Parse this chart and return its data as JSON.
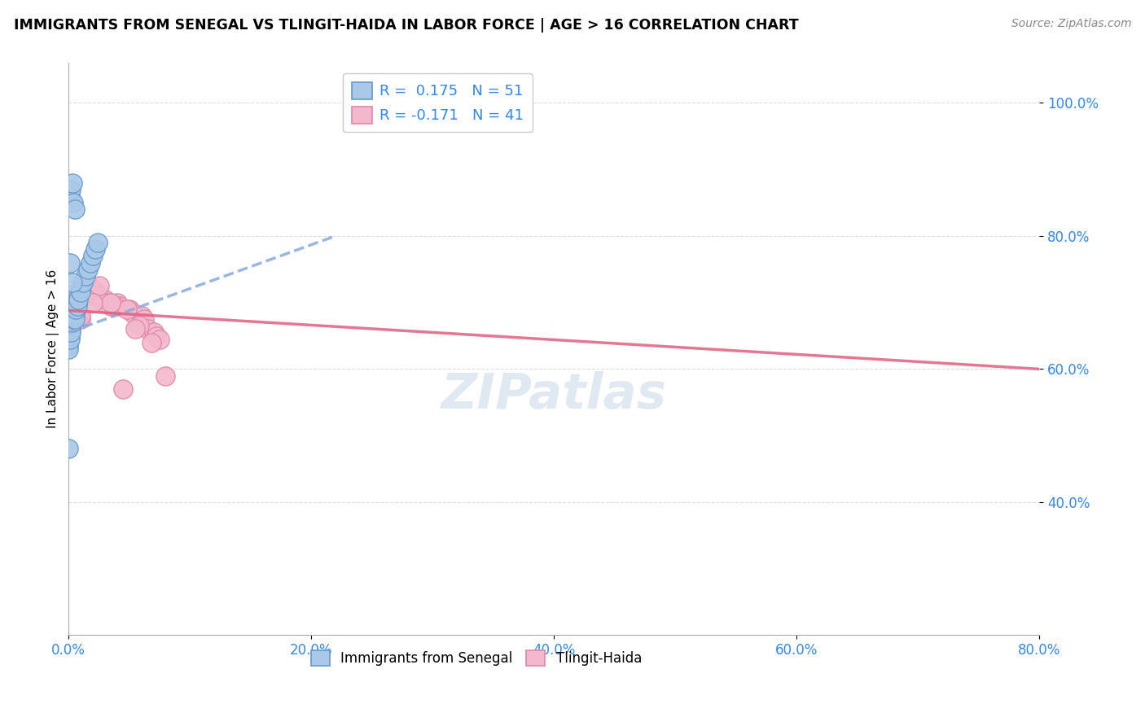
{
  "title": "IMMIGRANTS FROM SENEGAL VS TLINGIT-HAIDA IN LABOR FORCE | AGE > 16 CORRELATION CHART",
  "source_text": "Source: ZipAtlas.com",
  "ylabel": "In Labor Force | Age > 16",
  "xlim": [
    0.0,
    0.8
  ],
  "ylim": [
    0.2,
    1.06
  ],
  "yticks": [
    0.4,
    0.6,
    0.8,
    1.0
  ],
  "ytick_labels": [
    "40.0%",
    "60.0%",
    "80.0%",
    "100.0%"
  ],
  "xticks": [
    0.0,
    0.2,
    0.4,
    0.6,
    0.8
  ],
  "xtick_labels": [
    "0.0%",
    "20.0%",
    "40.0%",
    "60.0%",
    "80.0%"
  ],
  "blue_color": "#aac8e8",
  "pink_color": "#f4b8cc",
  "blue_edge": "#6699cc",
  "pink_edge": "#dd88aa",
  "blue_trend_color": "#88aadd",
  "pink_trend_color": "#e06080",
  "watermark_color": "#c8d8e8",
  "blue_x": [
    0.0,
    0.0,
    0.0,
    0.0,
    0.0,
    0.0,
    0.0,
    0.0,
    0.001,
    0.001,
    0.001,
    0.001,
    0.001,
    0.001,
    0.002,
    0.002,
    0.002,
    0.002,
    0.002,
    0.003,
    0.003,
    0.003,
    0.004,
    0.004,
    0.004,
    0.005,
    0.005,
    0.005,
    0.005,
    0.006,
    0.006,
    0.007,
    0.007,
    0.008,
    0.008,
    0.01,
    0.01,
    0.012,
    0.014,
    0.016,
    0.018,
    0.02,
    0.022,
    0.024,
    0.0,
    0.001,
    0.002,
    0.003,
    0.004,
    0.005,
    0.001,
    0.003
  ],
  "blue_y": [
    0.665,
    0.66,
    0.655,
    0.65,
    0.645,
    0.64,
    0.635,
    0.63,
    0.67,
    0.665,
    0.66,
    0.655,
    0.65,
    0.645,
    0.675,
    0.67,
    0.665,
    0.66,
    0.655,
    0.68,
    0.675,
    0.67,
    0.685,
    0.68,
    0.675,
    0.69,
    0.685,
    0.68,
    0.675,
    0.695,
    0.69,
    0.7,
    0.695,
    0.71,
    0.705,
    0.72,
    0.715,
    0.73,
    0.74,
    0.75,
    0.76,
    0.77,
    0.78,
    0.79,
    0.48,
    0.86,
    0.87,
    0.88,
    0.85,
    0.84,
    0.76,
    0.73
  ],
  "pink_x": [
    0.0,
    0.001,
    0.002,
    0.003,
    0.004,
    0.005,
    0.006,
    0.008,
    0.01,
    0.012,
    0.015,
    0.018,
    0.02,
    0.022,
    0.025,
    0.03,
    0.032,
    0.035,
    0.04,
    0.042,
    0.05,
    0.052,
    0.06,
    0.062,
    0.065,
    0.07,
    0.072,
    0.075,
    0.028,
    0.038,
    0.048,
    0.058,
    0.068,
    0.015,
    0.025,
    0.035,
    0.055,
    0.01,
    0.02,
    0.045,
    0.08
  ],
  "pink_y": [
    0.71,
    0.71,
    0.705,
    0.7,
    0.695,
    0.69,
    0.685,
    0.68,
    0.675,
    0.72,
    0.715,
    0.71,
    0.72,
    0.715,
    0.71,
    0.705,
    0.7,
    0.695,
    0.7,
    0.695,
    0.69,
    0.685,
    0.68,
    0.675,
    0.66,
    0.655,
    0.65,
    0.645,
    0.7,
    0.695,
    0.69,
    0.665,
    0.64,
    0.715,
    0.725,
    0.7,
    0.66,
    0.68,
    0.7,
    0.57,
    0.59
  ],
  "blue_trend_x": [
    0.0,
    0.8
  ],
  "blue_trend_y_start": 0.655,
  "blue_trend_y_end": 0.8,
  "pink_trend_x": [
    0.0,
    0.8
  ],
  "pink_trend_y_start": 0.688,
  "pink_trend_y_end": 0.6
}
